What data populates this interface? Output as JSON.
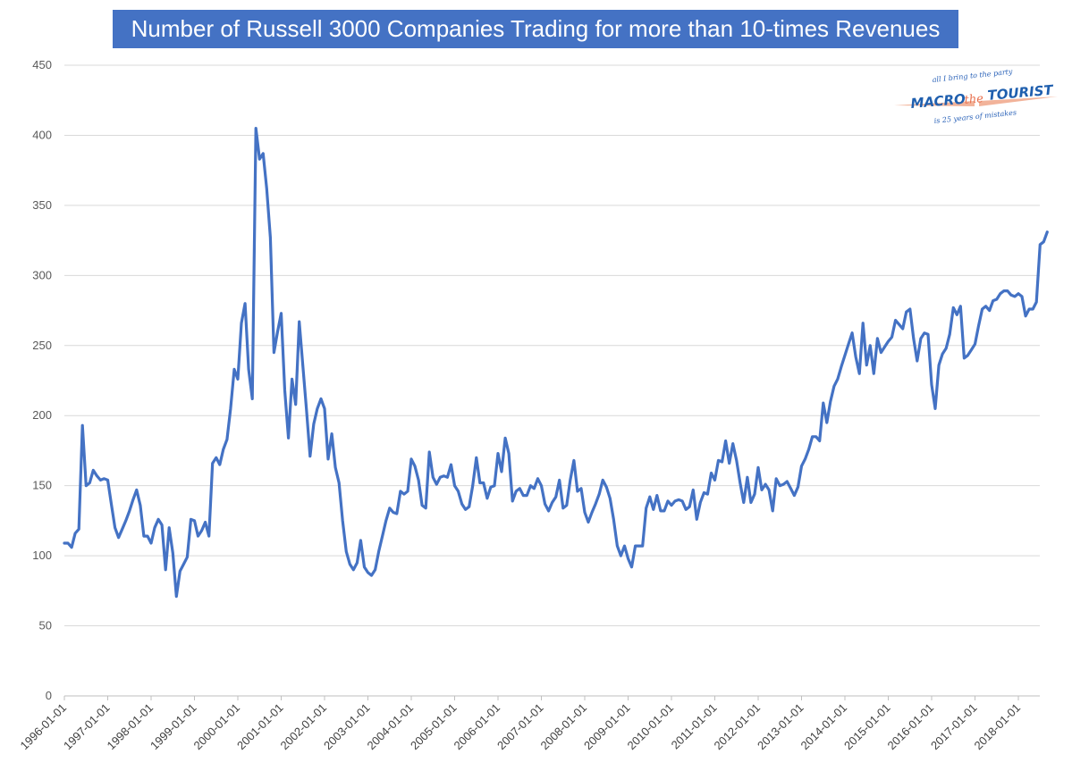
{
  "chart_data": {
    "type": "line",
    "title": "Number of Russell 3000 Companies Trading for more than 10-times Revenues",
    "xlabel": "",
    "ylabel": "",
    "ylim": [
      0,
      450
    ],
    "yticks": [
      0,
      50,
      100,
      150,
      200,
      250,
      300,
      350,
      400,
      450
    ],
    "xticks": [
      "1996-01-01",
      "1997-01-01",
      "1998-01-01",
      "1999-01-01",
      "2000-01-01",
      "2001-01-01",
      "2002-01-01",
      "2003-01-01",
      "2004-01-01",
      "2005-01-01",
      "2006-01-01",
      "2007-01-01",
      "2008-01-01",
      "2009-01-01",
      "2010-01-01",
      "2011-01-01",
      "2012-01-01",
      "2013-01-01",
      "2014-01-01",
      "2015-01-01",
      "2016-01-01",
      "2017-01-01",
      "2018-01-01"
    ],
    "grid": true,
    "legend": "none",
    "series": [
      {
        "color": "#4472c4",
        "x_start": "1996-01",
        "frequency": "monthly",
        "values": [
          109,
          109,
          106,
          116,
          119,
          193,
          150,
          152,
          161,
          157,
          154,
          155,
          154,
          137,
          120,
          113,
          119,
          125,
          132,
          140,
          147,
          136,
          114,
          114,
          109,
          120,
          126,
          122,
          90,
          120,
          102,
          71,
          89,
          94,
          99,
          126,
          125,
          114,
          118,
          124,
          114,
          166,
          170,
          165,
          176,
          183,
          205,
          233,
          226,
          266,
          280,
          233,
          212,
          405,
          383,
          387,
          362,
          327,
          245,
          260,
          273,
          218,
          184,
          226,
          208,
          267,
          235,
          204,
          171,
          194,
          205,
          212,
          205,
          169,
          187,
          163,
          152,
          125,
          103,
          94,
          90,
          95,
          111,
          92,
          88,
          86,
          90,
          103,
          114,
          125,
          134,
          131,
          130,
          146,
          144,
          146,
          169,
          164,
          154,
          136,
          134,
          174,
          156,
          151,
          156,
          157,
          156,
          165,
          150,
          146,
          137,
          133,
          135,
          150,
          170,
          152,
          152,
          141,
          149,
          150,
          173,
          160,
          184,
          173,
          139,
          146,
          148,
          143,
          143,
          150,
          148,
          155,
          150,
          137,
          132,
          138,
          142,
          154,
          134,
          136,
          154,
          168,
          146,
          148,
          131,
          124,
          131,
          137,
          144,
          154,
          149,
          141,
          126,
          107,
          100,
          107,
          98,
          92,
          107,
          107,
          107,
          134,
          142,
          133,
          143,
          132,
          132,
          139,
          136,
          139,
          140,
          139,
          133,
          135,
          147,
          126,
          138,
          145,
          144,
          159,
          154,
          168,
          167,
          182,
          166,
          180,
          168,
          152,
          138,
          156,
          138,
          144,
          163,
          147,
          151,
          147,
          132,
          155,
          150,
          151,
          153,
          148,
          143,
          149,
          164,
          169,
          176,
          185,
          185,
          182,
          209,
          195,
          210,
          221,
          226,
          235,
          243,
          251,
          259,
          242,
          230,
          266,
          236,
          250,
          230,
          255,
          245,
          249,
          253,
          256,
          268,
          265,
          262,
          274,
          276,
          255,
          239,
          255,
          259,
          258,
          222,
          205,
          236,
          244,
          248,
          258,
          277,
          272,
          278,
          241,
          243,
          247,
          251,
          264,
          276,
          278,
          275,
          282,
          283,
          287,
          289,
          289,
          286,
          285,
          287,
          285,
          271,
          276,
          276,
          281,
          322,
          324,
          331
        ]
      }
    ]
  }
}
